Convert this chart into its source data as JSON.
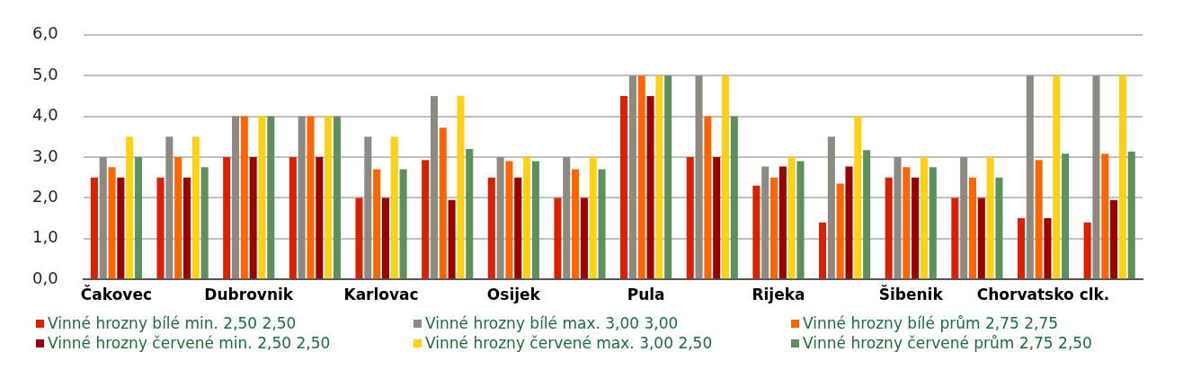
{
  "chart_data": {
    "type": "bar",
    "categories": [
      "Čakovec",
      null,
      "Dubrovnik",
      null,
      "Karlovac",
      null,
      "Osijek",
      null,
      "Pula",
      null,
      "Rijeka",
      null,
      "Šibenik",
      null,
      "Chorvatsko clk.",
      null
    ],
    "series": [
      {
        "name": "Vinné hrozny bílé min. 2,50 2,50",
        "color": "#d92000",
        "values": [
          2.5,
          2.5,
          3.0,
          3.0,
          2.0,
          2.93,
          2.5,
          2.0,
          4.5,
          3.0,
          2.3,
          1.4,
          2.5,
          2.0,
          1.5,
          1.4
        ]
      },
      {
        "name": "Vinné hrozny bílé max. 3,00 3,00",
        "color": "#8c8a82",
        "values": [
          3.0,
          3.5,
          4.0,
          4.0,
          3.5,
          4.5,
          3.0,
          3.0,
          5.0,
          5.0,
          2.77,
          3.5,
          3.0,
          3.0,
          5.0,
          5.0
        ]
      },
      {
        "name": "Vinné hrozny bílé prům 2,75 2,75",
        "color": "#ff6600",
        "values": [
          2.75,
          3.0,
          4.0,
          4.0,
          2.7,
          3.72,
          2.9,
          2.7,
          5.0,
          4.0,
          2.5,
          2.35,
          2.75,
          2.5,
          2.93,
          3.08
        ]
      },
      {
        "name": "Vinné hrozny červené min. 2,50 2,50",
        "color": "#990000",
        "values": [
          2.5,
          2.5,
          3.0,
          3.0,
          2.0,
          1.95,
          2.5,
          2.0,
          4.5,
          3.0,
          2.77,
          2.77,
          2.5,
          2.0,
          1.5,
          1.95
        ]
      },
      {
        "name": "Vinné hrozny červené max. 3,00 2,50",
        "color": "#fcd116",
        "values": [
          3.5,
          3.5,
          4.0,
          4.0,
          3.5,
          4.5,
          3.0,
          3.0,
          5.0,
          5.0,
          3.0,
          4.0,
          3.0,
          3.0,
          5.0,
          5.0
        ]
      },
      {
        "name": "Vinné hrozny červené prům 2,75 2,50",
        "color": "#5e8f5e",
        "values": [
          3.0,
          2.75,
          4.0,
          4.0,
          2.7,
          3.2,
          2.9,
          2.7,
          5.0,
          4.0,
          2.9,
          3.17,
          2.75,
          2.5,
          3.08,
          3.14
        ]
      }
    ],
    "ylim": [
      0,
      6
    ],
    "yticks": [
      {
        "value": 0,
        "label": "0,0"
      },
      {
        "value": 1,
        "label": "1,0"
      },
      {
        "value": 2,
        "label": "2,0"
      },
      {
        "value": 3,
        "label": "3,0"
      },
      {
        "value": 4,
        "label": "4,0"
      },
      {
        "value": 5,
        "label": "5,0"
      },
      {
        "value": 6,
        "label": "6,0"
      }
    ],
    "grid": "y",
    "legend": "bottom"
  }
}
